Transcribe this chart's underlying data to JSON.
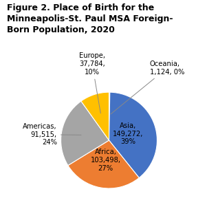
{
  "title": "Figure 2. Place of Birth for the\nMinneapolis-St. Paul MSA Foreign-\nBorn Population, 2020",
  "slices": [
    {
      "label": "Asia",
      "value": 149272,
      "pct": "39%",
      "color": "#4472C4"
    },
    {
      "label": "Africa",
      "value": 103498,
      "pct": "27%",
      "color": "#ED7D31"
    },
    {
      "label": "Americas",
      "value": 91515,
      "pct": "24%",
      "color": "#A5A5A5"
    },
    {
      "label": "Europe",
      "value": 37784,
      "pct": "10%",
      "color": "#FFC000"
    },
    {
      "label": "Oceania",
      "value": 1124,
      "pct": "0%",
      "color": "#5B9BD5"
    }
  ],
  "background_color": "#FFFFFF",
  "title_fontsize": 9.0,
  "label_fontsize": 7.2
}
